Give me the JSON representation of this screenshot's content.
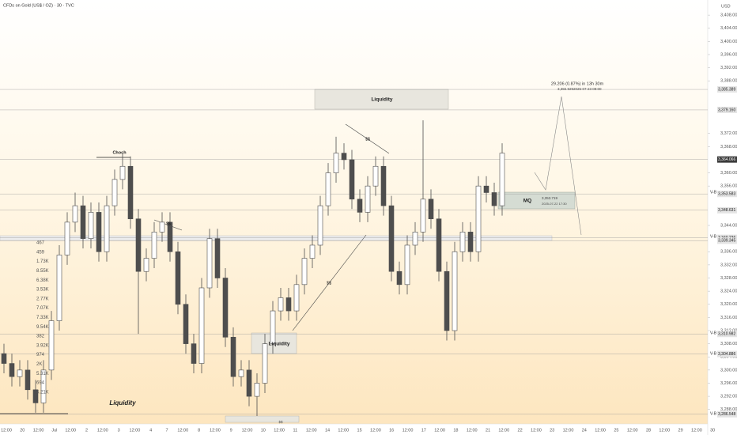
{
  "chart_data": {
    "type": "candlestick",
    "title": "CFDs on Gold (US$ / OZ) · 30 · TVC",
    "currency": "USD",
    "color": "#4e4e4e",
    "open": [
      3305,
      3302,
      3298,
      3300,
      3294,
      3290,
      3300,
      3315,
      3335,
      3345,
      3350,
      3340,
      3348,
      3336,
      3350,
      3358,
      3362,
      3346,
      3330,
      3334,
      3342,
      3345,
      3336,
      3320,
      3308,
      3302,
      3325,
      3340,
      3328,
      3310,
      3298,
      3300,
      3292,
      3296,
      3308,
      3318,
      3322,
      3318,
      3326,
      3334,
      3338,
      3350,
      3360,
      3366,
      3364,
      3352,
      3348,
      3356,
      3362,
      3350,
      3330,
      3326,
      3338,
      3342,
      3352,
      3346,
      3330,
      3312,
      3336,
      3342,
      3336,
      3356,
      3354,
      3350
    ],
    "high": [
      3308,
      3305,
      3303,
      3303,
      3297,
      3303,
      3318,
      3338,
      3348,
      3354,
      3353,
      3351,
      3351,
      3353,
      3361,
      3366,
      3365,
      3349,
      3337,
      3345,
      3348,
      3348,
      3339,
      3323,
      3311,
      3328,
      3343,
      3343,
      3331,
      3313,
      3303,
      3303,
      3299,
      3311,
      3321,
      3325,
      3325,
      3329,
      3337,
      3341,
      3353,
      3363,
      3371,
      3369,
      3367,
      3355,
      3359,
      3365,
      3365,
      3353,
      3333,
      3341,
      3345,
      3376,
      3355,
      3349,
      3333,
      3339,
      3345,
      3345,
      3359,
      3359,
      3357,
      3369
    ],
    "low": [
      3299,
      3295,
      3295,
      3291,
      3287,
      3287,
      3297,
      3312,
      3332,
      3342,
      3337,
      3337,
      3333,
      3333,
      3347,
      3355,
      3343,
      3311,
      3327,
      3331,
      3339,
      3333,
      3317,
      3305,
      3299,
      3299,
      3322,
      3325,
      3307,
      3295,
      3295,
      3289,
      3286,
      3293,
      3305,
      3315,
      3315,
      3315,
      3323,
      3331,
      3335,
      3347,
      3357,
      3361,
      3349,
      3345,
      3345,
      3353,
      3347,
      3327,
      3323,
      3323,
      3335,
      3339,
      3343,
      3327,
      3309,
      3309,
      3333,
      3333,
      3333,
      3351,
      3347,
      3347
    ],
    "close": [
      3302,
      3298,
      3300,
      3294,
      3290,
      3300,
      3315,
      3335,
      3345,
      3350,
      3340,
      3348,
      3336,
      3350,
      3358,
      3362,
      3346,
      3330,
      3334,
      3342,
      3345,
      3336,
      3320,
      3308,
      3302,
      3325,
      3340,
      3328,
      3310,
      3298,
      3300,
      3292,
      3296,
      3308,
      3318,
      3322,
      3318,
      3326,
      3334,
      3338,
      3350,
      3360,
      3366,
      3364,
      3352,
      3348,
      3356,
      3362,
      3350,
      3330,
      3326,
      3338,
      3342,
      3352,
      3346,
      3330,
      3312,
      3336,
      3342,
      3336,
      3356,
      3354,
      3350,
      3366
    ],
    "ylim": [
      3283.6,
      3412.6
    ],
    "yticks": [
      {
        "value": 3288,
        "label": "3,288.000"
      },
      {
        "value": 3292,
        "label": "3,292.000"
      },
      {
        "value": 3296,
        "label": "3,296.000"
      },
      {
        "value": 3300,
        "label": "3,300.000"
      },
      {
        "value": 3304,
        "label": "3,304.000"
      },
      {
        "value": 3308,
        "label": "3,308.000"
      },
      {
        "value": 3312,
        "label": "3,312.000"
      },
      {
        "value": 3316,
        "label": "3,316.000"
      },
      {
        "value": 3320,
        "label": "3,320.000"
      },
      {
        "value": 3324,
        "label": "3,324.000"
      },
      {
        "value": 3328,
        "label": "3,328.000"
      },
      {
        "value": 3332,
        "label": "3,332.000"
      },
      {
        "value": 3336,
        "label": "3,336.000"
      },
      {
        "value": 3344,
        "label": "3,344.000"
      },
      {
        "value": 3356,
        "label": "3,356.000"
      },
      {
        "value": 3360,
        "label": "3,360.000"
      },
      {
        "value": 3368,
        "label": "3,368.000"
      },
      {
        "value": 3372,
        "label": "3,372.000"
      },
      {
        "value": 3388,
        "label": "3,388.000"
      },
      {
        "value": 3392,
        "label": "3,392.000"
      },
      {
        "value": 3396,
        "label": "3,396.000"
      },
      {
        "value": 3400,
        "label": "3,400.000"
      },
      {
        "value": 3404,
        "label": "3,404.000"
      },
      {
        "value": 3408,
        "label": "3,408.000"
      }
    ],
    "price_labels": [
      {
        "value": 3385.389,
        "label": "3,385.389"
      },
      {
        "value": 3379.16,
        "label": "3,379.160"
      },
      {
        "value": 3364.066,
        "label": "3,364.066"
      },
      {
        "value": 3353.583,
        "label": "3,353.583"
      },
      {
        "value": 3348.631,
        "label": "3,348.631"
      },
      {
        "value": 3340.236,
        "label": "3,340.236"
      },
      {
        "value": 3339.345,
        "label": "3,339.345"
      },
      {
        "value": 3310.982,
        "label": "3,310.982"
      },
      {
        "value": 3304.886,
        "label": "3,304.886"
      },
      {
        "value": 3286.548,
        "label": "3,286.548"
      }
    ],
    "x_axis_labels": [
      "12:00",
      "20",
      "12:00",
      "Jul",
      "12:00",
      "2",
      "12:00",
      "3",
      "12:00",
      "4",
      "7",
      "12:00",
      "8",
      "12:00",
      "9",
      "12:00",
      "10",
      "12:00",
      "11",
      "12:00",
      "14",
      "12:00",
      "15",
      "12:00",
      "16",
      "12:00",
      "17",
      "12:00",
      "18",
      "12:00",
      "21",
      "12:00",
      "22",
      "12:00",
      "23",
      "12:00",
      "24",
      "12:00",
      "25",
      "12:00",
      "28",
      "12:00",
      "29",
      "12:00",
      "30"
    ],
    "volume_profile_labels": [
      "467",
      "459",
      "1.73K",
      "8.55K",
      "6.38K",
      "3.53K",
      "2.77K",
      "7.07K",
      "7.33K",
      "9.54K",
      "382",
      "3.92K",
      "974",
      "2K",
      "5.31K",
      "694",
      "4.21K"
    ],
    "annotations": [
      "Liquidity",
      "Liquidity",
      "Liquidity",
      "Choch",
      "$$",
      "$$",
      "$$",
      "$$",
      "MQ",
      "3,353.719",
      "2025-07-22 17:30",
      "29.206 (0.87%) in 13h 30m",
      "3,382.929",
      "2025-07-23 09:00",
      "V-B",
      "V-B",
      "V-B",
      "V-B",
      "V-B"
    ]
  }
}
